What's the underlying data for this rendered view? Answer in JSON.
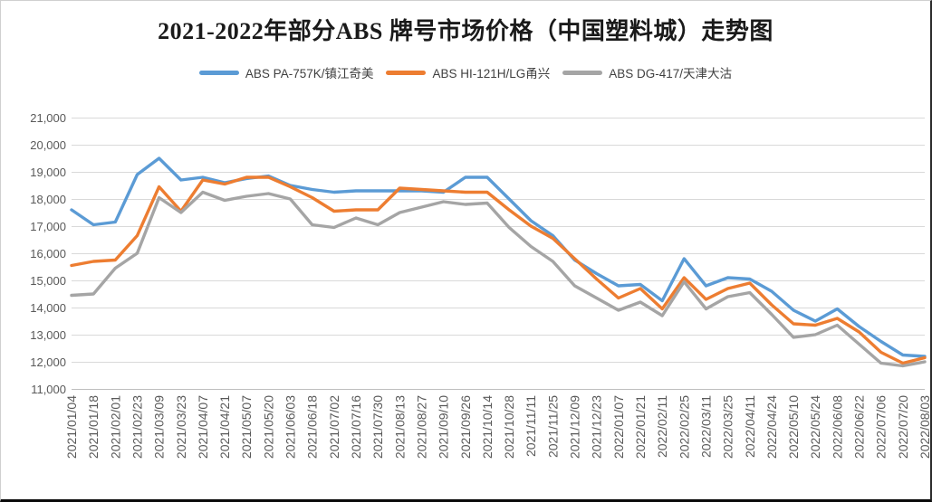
{
  "title": "2021-2022年部分ABS 牌号市场价格（中国塑料城）走势图",
  "colors": {
    "background": "#FFFFFF",
    "grid": "#D9D9D9",
    "axis_line": "#BFBFBF",
    "tick_text": "#595959",
    "title_text": "#1A1A1A",
    "legend_text": "#404040",
    "series_blue": "#5B9BD5",
    "series_orange": "#ED7D31",
    "series_gray": "#A5A5A5"
  },
  "chart_data": {
    "type": "line",
    "title": "2021-2022年部分ABS 牌号市场价格（中国塑料城）走势图",
    "xlabel": "",
    "ylabel": "",
    "ylim": [
      11000,
      21000
    ],
    "grid": true,
    "legend_position": "top",
    "x_label_rotation": -90,
    "yticks": [
      {
        "value": 11000,
        "label": "11,000"
      },
      {
        "value": 12000,
        "label": "12,000"
      },
      {
        "value": 13000,
        "label": "13,000"
      },
      {
        "value": 14000,
        "label": "14,000"
      },
      {
        "value": 15000,
        "label": "15,000"
      },
      {
        "value": 16000,
        "label": "16,000"
      },
      {
        "value": 17000,
        "label": "17,000"
      },
      {
        "value": 18000,
        "label": "18,000"
      },
      {
        "value": 19000,
        "label": "19,000"
      },
      {
        "value": 20000,
        "label": "20,000"
      },
      {
        "value": 21000,
        "label": "21,000"
      }
    ],
    "x": [
      "2021/01/04",
      "2021/01/18",
      "2021/02/01",
      "2021/02/23",
      "2021/03/09",
      "2021/03/23",
      "2021/04/07",
      "2021/04/21",
      "2021/05/07",
      "2021/05/20",
      "2021/06/03",
      "2021/06/18",
      "2021/07/02",
      "2021/07/16",
      "2021/07/30",
      "2021/08/13",
      "2021/08/27",
      "2021/09/10",
      "2021/09/26",
      "2021/10/14",
      "2021/10/28",
      "2021/11/11",
      "2021/11/25",
      "2021/12/09",
      "2021/12/23",
      "2022/01/07",
      "2022/01/21",
      "2022/02/11",
      "2022/02/25",
      "2022/03/11",
      "2022/03/25",
      "2022/04/11",
      "2022/04/24",
      "2022/05/10",
      "2022/05/24",
      "2022/06/08",
      "2022/06/22",
      "2022/07/06",
      "2022/07/20",
      "2022/08/03"
    ],
    "series": [
      {
        "id": "abs-pa-757k",
        "name": "ABS PA-757K/镇江奇美",
        "color": "#5B9BD5",
        "values": [
          17600,
          17050,
          17150,
          18900,
          19500,
          18700,
          18800,
          18600,
          18750,
          18850,
          18500,
          18350,
          18250,
          18300,
          18300,
          18300,
          18300,
          18250,
          18800,
          18800,
          18000,
          17200,
          16650,
          15750,
          15250,
          14800,
          14850,
          14250,
          15800,
          14800,
          15100,
          15050,
          14600,
          13900,
          13500,
          13950,
          13300,
          12750,
          12250,
          12200
        ]
      },
      {
        "id": "abs-hi-121h",
        "name": "ABS HI-121H/LG甬兴",
        "color": "#ED7D31",
        "values": [
          15550,
          15700,
          15750,
          16650,
          18450,
          17550,
          18700,
          18550,
          18800,
          18800,
          18450,
          18050,
          17550,
          17600,
          17600,
          18400,
          18350,
          18300,
          18250,
          18250,
          17600,
          17000,
          16550,
          15800,
          15050,
          14350,
          14700,
          13950,
          15100,
          14300,
          14700,
          14900,
          14100,
          13400,
          13350,
          13600,
          13100,
          12350,
          11950,
          12150
        ]
      },
      {
        "id": "abs-dg-417",
        "name": "ABS DG-417/天津大沽",
        "color": "#A5A5A5",
        "values": [
          14450,
          14500,
          15450,
          16000,
          18050,
          17500,
          18250,
          17950,
          18100,
          18200,
          18000,
          17050,
          16950,
          17300,
          17050,
          17500,
          17700,
          17900,
          17800,
          17850,
          16950,
          16250,
          15700,
          14800,
          14350,
          13900,
          14200,
          13700,
          14950,
          13950,
          14400,
          14550,
          13750,
          12900,
          13000,
          13350,
          12650,
          11950,
          11850,
          12000
        ]
      }
    ]
  }
}
